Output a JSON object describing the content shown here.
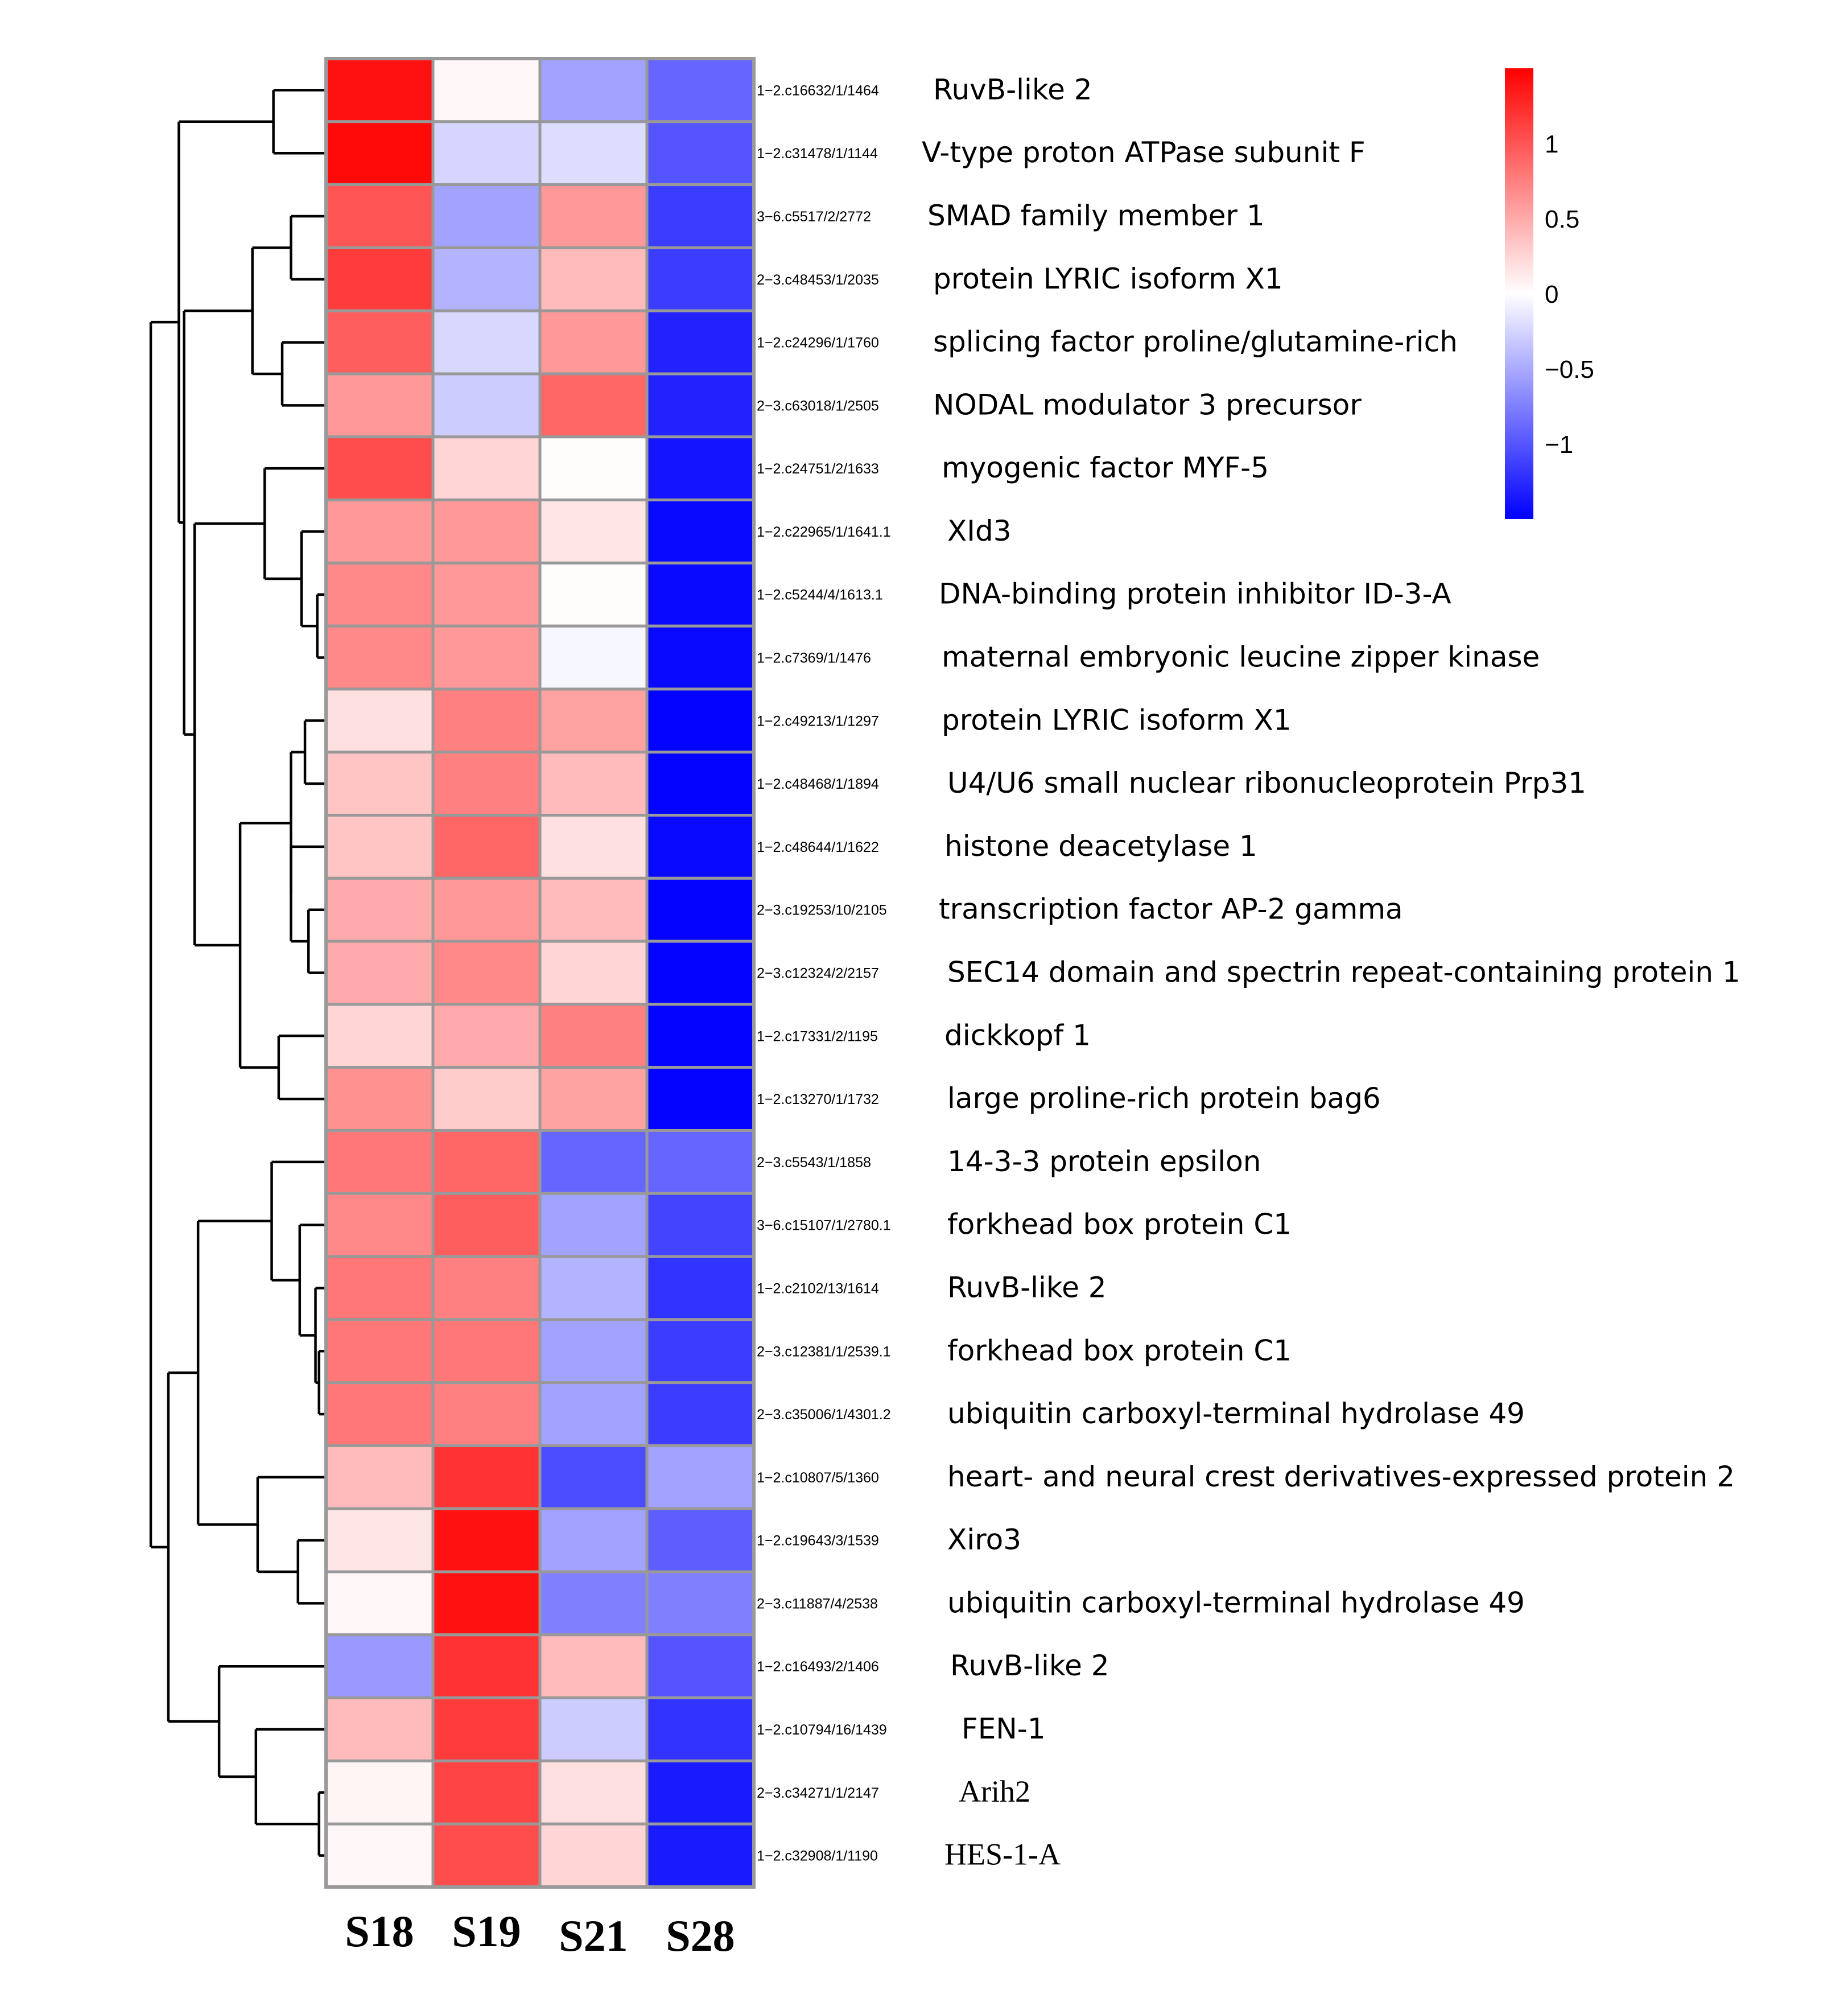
{
  "chart_data": {
    "type": "heatmap",
    "title": "",
    "columns": [
      "S18",
      "S19",
      "S21",
      "S28"
    ],
    "color_scale": {
      "low_color": "#0000ff",
      "mid_color": "#ffffff",
      "high_color": "#ff0000",
      "range": [
        -1.5,
        1.5
      ],
      "ticks": [
        1,
        0.5,
        0,
        -0.5,
        -1
      ],
      "tick_labels": [
        "1",
        "0.5",
        "0",
        "−0.5",
        "−1"
      ],
      "legend_position": "top-right"
    },
    "rows": [
      {
        "id": "1−2.c16632/1/1464",
        "name": "RuvB-like 2",
        "values": [
          1.4,
          0.05,
          -0.55,
          -0.9
        ]
      },
      {
        "id": "1−2.c31478/1/1144",
        "name": "V-type proton ATPase subunit F",
        "values": [
          1.45,
          -0.25,
          -0.2,
          -1.0
        ]
      },
      {
        "id": "3−6.c5517/2/2772",
        "name": "SMAD family member 1",
        "values": [
          1.0,
          -0.55,
          0.6,
          -1.15
        ]
      },
      {
        "id": "2−3.c48453/1/2035",
        "name": "protein LYRIC isoform X1",
        "values": [
          1.15,
          -0.45,
          0.4,
          -1.15
        ]
      },
      {
        "id": "1−2.c24296/1/1760",
        "name": "splicing factor proline/glutamine-rich",
        "values": [
          0.95,
          -0.23,
          0.6,
          -1.3
        ]
      },
      {
        "id": "2−3.c63018/1/2505",
        "name": "NODAL modulator 3 precursor",
        "values": [
          0.6,
          -0.3,
          0.9,
          -1.3
        ]
      },
      {
        "id": "1−2.c24751/2/1633",
        "name": "myogenic factor MYF-5",
        "values": [
          1.05,
          0.25,
          0.02,
          -1.38
        ]
      },
      {
        "id": "1−2.c22965/1/1641.1",
        "name": "XId3",
        "values": [
          0.6,
          0.6,
          0.15,
          -1.45
        ]
      },
      {
        "id": "1−2.c5244/4/1613.1",
        "name": "DNA-binding protein inhibitor ID-3-A",
        "values": [
          0.7,
          0.6,
          0.02,
          -1.45
        ]
      },
      {
        "id": "1−2.c7369/1/1476",
        "name": "maternal embryonic leucine zipper kinase",
        "values": [
          0.7,
          0.6,
          -0.05,
          -1.45
        ]
      },
      {
        "id": "1−2.c49213/1/1297",
        "name": "protein LYRIC isoform X1",
        "values": [
          0.18,
          0.75,
          0.55,
          -1.48
        ]
      },
      {
        "id": "1−2.c48468/1/1894",
        "name": "U4/U6 small nuclear ribonucleoprotein Prp31",
        "values": [
          0.35,
          0.75,
          0.4,
          -1.48
        ]
      },
      {
        "id": "1−2.c48644/1/1622",
        "name": "histone deacetylase 1",
        "values": [
          0.35,
          0.9,
          0.18,
          -1.45
        ]
      },
      {
        "id": "2−3.c19253/10/2105",
        "name": "transcription factor AP-2 gamma",
        "values": [
          0.5,
          0.6,
          0.4,
          -1.48
        ]
      },
      {
        "id": "2−3.c12324/2/2157",
        "name": "SEC14 domain and spectrin repeat-containing protein 1",
        "values": [
          0.5,
          0.7,
          0.25,
          -1.48
        ]
      },
      {
        "id": "1−2.c17331/2/1195",
        "name": "dickkopf 1",
        "values": [
          0.25,
          0.5,
          0.75,
          -1.48
        ]
      },
      {
        "id": "1−2.c13270/1/1732",
        "name": "large proline-rich protein bag6",
        "values": [
          0.65,
          0.3,
          0.55,
          -1.48
        ]
      },
      {
        "id": "2−3.c5543/1/1858",
        "name": "14-3-3 protein epsilon",
        "values": [
          0.8,
          0.9,
          -0.9,
          -0.9
        ]
      },
      {
        "id": "3−6.c15107/1/2780.1",
        "name": "forkhead box protein C1",
        "values": [
          0.7,
          0.95,
          -0.55,
          -1.1
        ]
      },
      {
        "id": "1−2.c2102/13/1614",
        "name": "RuvB-like 2",
        "values": [
          0.8,
          0.75,
          -0.45,
          -1.2
        ]
      },
      {
        "id": "2−3.c12381/1/2539.1",
        "name": "forkhead box protein C1",
        "values": [
          0.8,
          0.8,
          -0.55,
          -1.15
        ]
      },
      {
        "id": "2−3.c35006/1/4301.2",
        "name": "ubiquitin carboxyl-terminal hydrolase 49",
        "values": [
          0.8,
          0.75,
          -0.55,
          -1.15
        ]
      },
      {
        "id": "1−2.c10807/5/1360",
        "name": "heart- and neural crest derivatives-expressed protein 2",
        "values": [
          0.4,
          1.2,
          -1.05,
          -0.55
        ]
      },
      {
        "id": "1−2.c19643/3/1539",
        "name": "Xiro3",
        "values": [
          0.15,
          1.4,
          -0.55,
          -0.95
        ]
      },
      {
        "id": "2−3.c11887/4/2538",
        "name": "ubiquitin carboxyl-terminal hydrolase 49",
        "values": [
          0.05,
          1.4,
          -0.75,
          -0.75
        ]
      },
      {
        "id": "1−2.c16493/2/1406",
        "name": "RuvB-like 2",
        "values": [
          -0.6,
          1.2,
          0.4,
          -1.0
        ]
      },
      {
        "id": "1−2.c10794/16/1439",
        "name": "FEN-1",
        "values": [
          0.4,
          1.15,
          -0.3,
          -1.2
        ]
      },
      {
        "id": "2−3.c34271/1/2147",
        "name": "Arih2",
        "values": [
          0.06,
          1.1,
          0.18,
          -1.35
        ]
      },
      {
        "id": "1−2.c32908/1/1190",
        "name": "HES-1-A",
        "values": [
          0.05,
          1.05,
          0.25,
          -1.35
        ]
      }
    ],
    "row_dendrogram": {
      "h": 1.0,
      "children": [
        {
          "h": 0.84,
          "children": [
            {
              "h": 0.3,
              "children": [
                0,
                1
              ]
            },
            {
              "h": 0.81,
              "children": [
                {
                  "h": 0.42,
                  "children": [
                    {
                      "h": 0.2,
                      "children": [
                        2,
                        3
                      ]
                    },
                    {
                      "h": 0.25,
                      "children": [
                        4,
                        5
                      ]
                    }
                  ]
                },
                {
                  "h": 0.75,
                  "children": [
                    {
                      "h": 0.35,
                      "children": [
                        6,
                        {
                          "h": 0.14,
                          "children": [
                            7,
                            {
                              "h": 0.05,
                              "children": [
                                8,
                                9
                              ]
                            }
                          ]
                        }
                      ]
                    },
                    {
                      "h": 0.49,
                      "children": [
                        {
                          "h": 0.2,
                          "children": [
                            {
                              "h": 0.12,
                              "children": [
                                10,
                                11
                              ]
                            },
                            {
                              "h": 0.2,
                              "children": [
                                12,
                                {
                                  "h": 0.1,
                                  "children": [
                                    13,
                                    14
                                  ]
                                }
                              ]
                            }
                          ]
                        },
                        {
                          "h": 0.27,
                          "children": [
                            15,
                            16
                          ]
                        }
                      ]
                    }
                  ]
                }
              ]
            }
          ]
        },
        {
          "h": 0.9,
          "children": [
            {
              "h": 0.73,
              "children": [
                {
                  "h": 0.31,
                  "children": [
                    17,
                    {
                      "h": 0.15,
                      "children": [
                        18,
                        {
                          "h": 0.06,
                          "children": [
                            19,
                            {
                              "h": 0.04,
                              "children": [
                                20,
                                21
                              ]
                            }
                          ]
                        }
                      ]
                    }
                  ]
                },
                {
                  "h": 0.39,
                  "children": [
                    22,
                    {
                      "h": 0.16,
                      "children": [
                        23,
                        24
                      ]
                    }
                  ]
                }
              ]
            },
            {
              "h": 0.61,
              "children": [
                25,
                {
                  "h": 0.4,
                  "children": [
                    26,
                    {
                      "h": 0.04,
                      "children": [
                        27,
                        28
                      ]
                    }
                  ]
                }
              ]
            }
          ]
        }
      ]
    }
  }
}
